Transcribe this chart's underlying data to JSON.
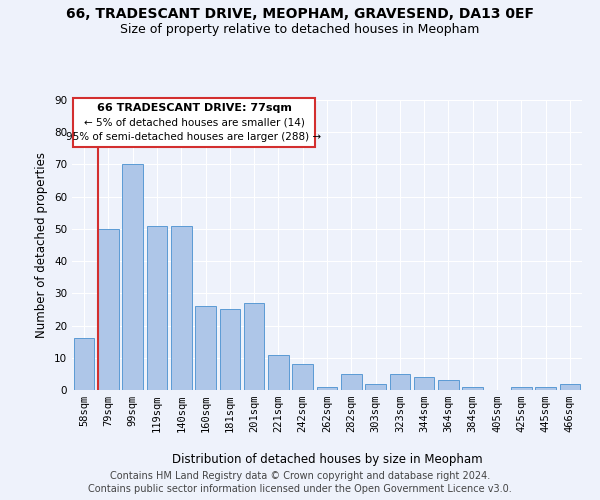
{
  "title": "66, TRADESCANT DRIVE, MEOPHAM, GRAVESEND, DA13 0EF",
  "subtitle": "Size of property relative to detached houses in Meopham",
  "xlabel": "Distribution of detached houses by size in Meopham",
  "ylabel": "Number of detached properties",
  "categories": [
    "58sqm",
    "79sqm",
    "99sqm",
    "119sqm",
    "140sqm",
    "160sqm",
    "181sqm",
    "201sqm",
    "221sqm",
    "242sqm",
    "262sqm",
    "282sqm",
    "303sqm",
    "323sqm",
    "344sqm",
    "364sqm",
    "384sqm",
    "405sqm",
    "425sqm",
    "445sqm",
    "466sqm"
  ],
  "values": [
    16,
    50,
    70,
    51,
    51,
    26,
    25,
    27,
    11,
    8,
    1,
    5,
    2,
    5,
    4,
    3,
    1,
    0,
    1,
    1,
    2
  ],
  "bar_color": "#aec6e8",
  "bar_edge_color": "#5b9bd5",
  "highlight_color": "#d32f2f",
  "vline_bar_index": 1,
  "ylim": [
    0,
    90
  ],
  "yticks": [
    0,
    10,
    20,
    30,
    40,
    50,
    60,
    70,
    80,
    90
  ],
  "annotation_title": "66 TRADESCANT DRIVE: 77sqm",
  "annotation_line1": "← 5% of detached houses are smaller (14)",
  "annotation_line2": "95% of semi-detached houses are larger (288) →",
  "annotation_box_color": "#ffffff",
  "annotation_box_edge": "#d32f2f",
  "footer1": "Contains HM Land Registry data © Crown copyright and database right 2024.",
  "footer2": "Contains public sector information licensed under the Open Government Licence v3.0.",
  "bg_color": "#eef2fb",
  "plot_bg_color": "#eef2fb",
  "title_fontsize": 10,
  "subtitle_fontsize": 9,
  "axis_label_fontsize": 8.5,
  "tick_fontsize": 7.5,
  "footer_fontsize": 7
}
